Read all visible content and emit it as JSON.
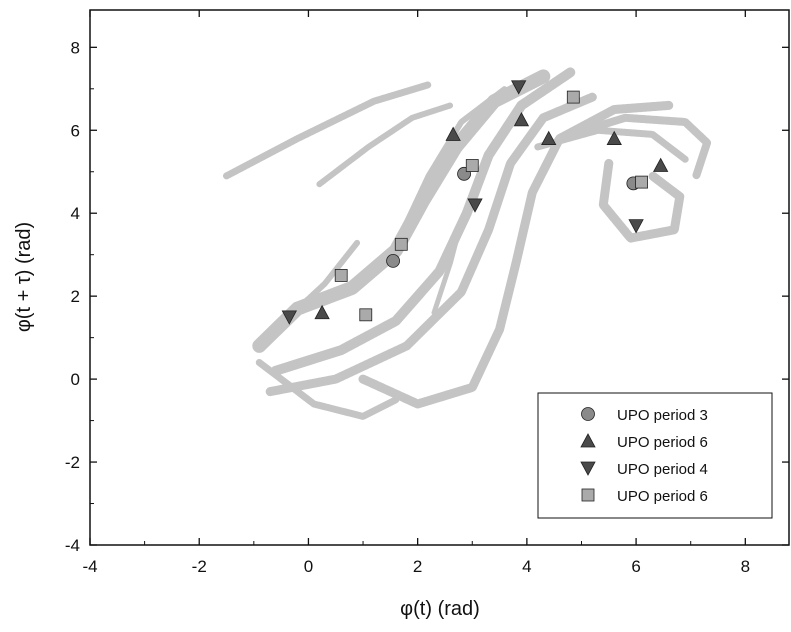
{
  "chart_data": {
    "type": "scatter",
    "title": "",
    "xlabel": "φ(t) (rad)",
    "ylabel": "φ(t + τ) (rad)",
    "xlim": [
      -4,
      8.8
    ],
    "ylim": [
      -4,
      8.9
    ],
    "xticks": [
      -4,
      -2,
      0,
      2,
      4,
      6,
      8
    ],
    "yticks": [
      -4,
      -2,
      0,
      2,
      4,
      6,
      8
    ],
    "grid": false,
    "legend_position": "bottom-right",
    "background_attractor_color": "#c4c4c4",
    "series": [
      {
        "name": "UPO period 3",
        "marker": "circle",
        "color": "#8a8a8a",
        "points": [
          [
            1.55,
            2.85
          ],
          [
            2.85,
            4.95
          ],
          [
            5.95,
            4.72
          ]
        ]
      },
      {
        "name": "UPO period 6",
        "marker": "triangle-up",
        "color": "#4a4a4a",
        "points": [
          [
            0.25,
            1.6
          ],
          [
            2.65,
            5.9
          ],
          [
            3.9,
            6.25
          ],
          [
            4.4,
            5.8
          ],
          [
            5.6,
            5.8
          ],
          [
            6.45,
            5.15
          ]
        ]
      },
      {
        "name": "UPO period 4",
        "marker": "triangle-down",
        "color": "#4a4a4a",
        "points": [
          [
            -0.35,
            1.5
          ],
          [
            3.05,
            4.2
          ],
          [
            3.85,
            7.05
          ],
          [
            6.0,
            3.7
          ]
        ]
      },
      {
        "name": "UPO period 6",
        "marker": "square",
        "color": "#aaaaaa",
        "points": [
          [
            0.6,
            2.5
          ],
          [
            1.05,
            1.55
          ],
          [
            1.7,
            3.25
          ],
          [
            3.0,
            5.15
          ],
          [
            4.85,
            6.8
          ],
          [
            6.1,
            4.75
          ]
        ]
      }
    ]
  }
}
